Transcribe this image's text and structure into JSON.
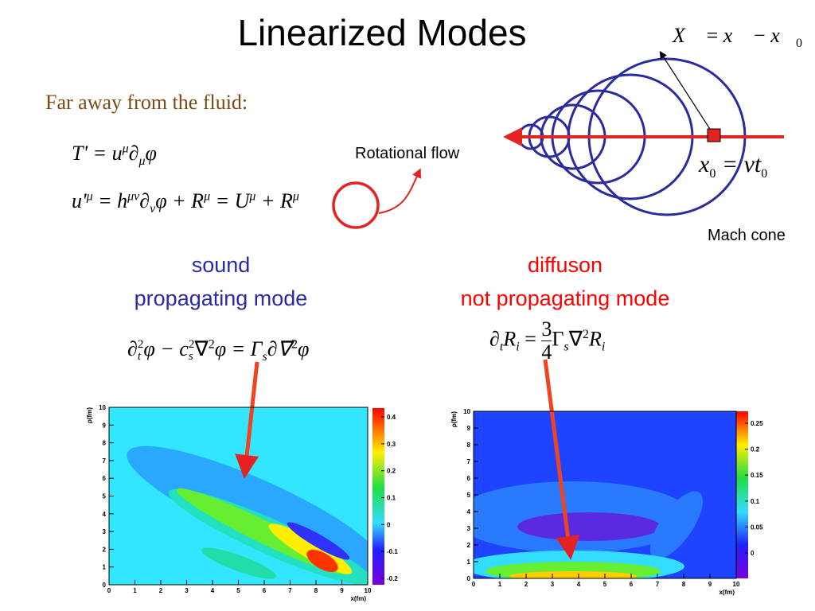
{
  "title": "Linearized Modes",
  "subtitle": "Far away from the fluid:",
  "eq_vector": [
    "X⃗",
    " = ",
    "x⃗",
    " − ",
    "x⃗",
    "0"
  ],
  "eq_source": [
    "x",
    "0",
    " = vt",
    "0"
  ],
  "eq_T": [
    "T' = u",
    "μ",
    "∂",
    "μ",
    "φ"
  ],
  "eq_u": [
    "u'",
    "μ",
    " = h",
    "μν",
    "∂",
    "ν",
    "φ + R",
    "μ",
    " = U",
    "μ",
    " + ",
    "R",
    "μ"
  ],
  "label_rotational": "Rotational flow",
  "label_mach": "Mach cone",
  "sound": {
    "title": "sound",
    "subtitle": "propagating mode"
  },
  "diffuson": {
    "title": "diffuson",
    "subtitle": "not propagating mode"
  },
  "eq_sound": [
    "∂",
    "2",
    "t",
    "φ − c",
    "2",
    "s",
    "∇",
    "2",
    "φ = Γ",
    "s",
    "∂∇",
    "2",
    "φ"
  ],
  "eq_diff": [
    "∂",
    "t",
    "R",
    "i",
    " = ",
    "3",
    "4",
    "Γ",
    "s",
    "∇",
    "2",
    "R",
    "i"
  ],
  "plots": [
    {
      "ylabel": "ρ(fm)",
      "xlabel": "x(fm)",
      "xticks": [
        0,
        1,
        2,
        3,
        4,
        5,
        6,
        7,
        8,
        9,
        10
      ],
      "yticks": [
        0,
        1,
        2,
        3,
        4,
        5,
        6,
        7,
        8,
        9,
        10
      ],
      "cticks": [
        -0.2,
        -0.1,
        0,
        0.1,
        0.2,
        0.3,
        0.4
      ]
    },
    {
      "ylabel": "ρ(fm)",
      "xlabel": "x(fm)",
      "xticks": [
        0,
        1,
        2,
        3,
        4,
        5,
        6,
        7,
        8,
        9,
        10
      ],
      "yticks": [
        0,
        1,
        2,
        3,
        4,
        5,
        6,
        7,
        8,
        9,
        10
      ],
      "cticks": [
        0,
        0.05,
        0.1,
        0.15,
        0.2,
        0.25
      ]
    }
  ]
}
